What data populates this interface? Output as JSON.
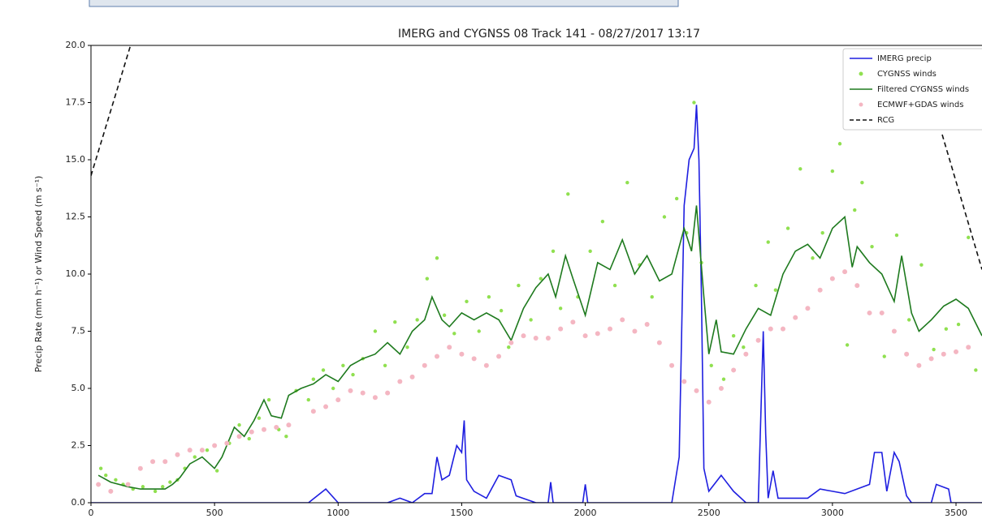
{
  "chart_data": {
    "type": "line",
    "title": "IMERG and CYGNSS 08 Track 141 - 08/27/2017 13:17",
    "y_label": "Precip Rate (mm h⁻¹) or Wind Speed (m s⁻¹)",
    "xlim": [
      0,
      3605
    ],
    "ylim": [
      0,
      20
    ],
    "xticks": [
      0,
      500,
      1000,
      1500,
      2000,
      2500,
      3000,
      3500
    ],
    "yticks": [
      {
        "value": 0,
        "label": "0.0"
      },
      2.5,
      {
        "value": 5,
        "label": "5.0"
      },
      7.5,
      {
        "value": 10,
        "label": "10.0"
      },
      12.5,
      {
        "value": 15,
        "label": "15.0"
      },
      17.5,
      {
        "value": 20,
        "label": "20.0"
      }
    ],
    "legend": "upper right",
    "series": [
      {
        "name": "IMERG precip",
        "color": "#1f1fe0",
        "style": "line",
        "x": [
          0,
          880,
          950,
          1000,
          1200,
          1250,
          1300,
          1350,
          1380,
          1400,
          1420,
          1450,
          1480,
          1500,
          1510,
          1520,
          1550,
          1600,
          1650,
          1700,
          1720,
          1800,
          1850,
          1860,
          1870,
          1990,
          2000,
          2010,
          2350,
          2380,
          2400,
          2420,
          2440,
          2450,
          2460,
          2470,
          2480,
          2500,
          2550,
          2600,
          2650,
          2700,
          2720,
          2730,
          2740,
          2760,
          2780,
          2900,
          2950,
          3000,
          3050,
          3150,
          3170,
          3200,
          3220,
          3250,
          3270,
          3300,
          3320,
          3400,
          3420,
          3470,
          3480,
          3605
        ],
        "values": [
          0,
          0,
          0.6,
          0,
          0,
          0.2,
          0,
          0.4,
          0.4,
          2,
          1,
          1.2,
          2.5,
          2.2,
          3.6,
          1,
          0.5,
          0.2,
          1.2,
          1,
          0.3,
          0,
          0,
          0.9,
          0,
          0,
          0.8,
          0,
          0,
          2,
          13,
          15,
          15.5,
          17.4,
          15,
          9,
          1.5,
          0.5,
          1.2,
          0.5,
          0,
          0,
          7.5,
          3,
          0.2,
          1.4,
          0.2,
          0.2,
          0.6,
          0.5,
          0.4,
          0.8,
          2.2,
          2.2,
          0.5,
          2.2,
          1.8,
          0.3,
          0,
          0,
          0.8,
          0.6,
          0,
          0
        ]
      },
      {
        "name": "CYGNSS winds",
        "color": "#90e050",
        "style": "points",
        "x": [
          40,
          60,
          100,
          130,
          170,
          210,
          260,
          290,
          320,
          350,
          380,
          420,
          470,
          510,
          560,
          600,
          640,
          680,
          720,
          760,
          790,
          830,
          880,
          900,
          940,
          980,
          1020,
          1060,
          1100,
          1150,
          1190,
          1230,
          1280,
          1320,
          1360,
          1400,
          1430,
          1470,
          1520,
          1570,
          1610,
          1660,
          1690,
          1730,
          1780,
          1820,
          1870,
          1900,
          1930,
          1970,
          2020,
          2070,
          2120,
          2170,
          2220,
          2270,
          2320,
          2370,
          2410,
          2440,
          2470,
          2510,
          2560,
          2600,
          2640,
          2690,
          2740,
          2770,
          2820,
          2870,
          2920,
          2960,
          3000,
          3030,
          3060,
          3090,
          3120,
          3160,
          3210,
          3260,
          3310,
          3360,
          3410,
          3460,
          3510,
          3550,
          3580
        ],
        "values": [
          1.5,
          1.2,
          1.0,
          0.8,
          0.6,
          0.7,
          0.5,
          0.7,
          0.9,
          1.0,
          1.5,
          2.0,
          2.3,
          1.4,
          2.6,
          3.4,
          2.8,
          3.7,
          4.5,
          3.2,
          2.9,
          4.9,
          4.5,
          5.4,
          5.8,
          5.0,
          6.0,
          5.6,
          6.3,
          7.5,
          6.0,
          7.9,
          6.8,
          8.0,
          9.8,
          10.7,
          8.2,
          7.4,
          8.8,
          7.5,
          9.0,
          8.4,
          6.8,
          9.5,
          8.0,
          9.8,
          11.0,
          8.5,
          13.5,
          9.0,
          11.0,
          12.3,
          9.5,
          14.0,
          10.4,
          9.0,
          12.5,
          13.3,
          11.8,
          17.5,
          10.5,
          6.0,
          5.4,
          7.3,
          6.8,
          9.5,
          11.4,
          9.3,
          12.0,
          14.6,
          10.7,
          11.8,
          14.5,
          15.7,
          6.9,
          12.8,
          14.0,
          11.2,
          6.4,
          11.7,
          8.0,
          10.4,
          6.7,
          7.6,
          7.8,
          11.6,
          5.8
        ]
      },
      {
        "name": "Filtered CYGNSS winds",
        "color": "#1e7a1e",
        "style": "line",
        "x": [
          30,
          80,
          150,
          200,
          250,
          300,
          330,
          360,
          400,
          450,
          500,
          530,
          580,
          620,
          660,
          700,
          730,
          770,
          800,
          850,
          900,
          950,
          1000,
          1050,
          1100,
          1150,
          1200,
          1250,
          1300,
          1350,
          1380,
          1420,
          1450,
          1500,
          1550,
          1600,
          1650,
          1700,
          1750,
          1800,
          1850,
          1880,
          1920,
          1950,
          2000,
          2050,
          2100,
          2150,
          2200,
          2250,
          2300,
          2350,
          2400,
          2430,
          2450,
          2480,
          2500,
          2530,
          2550,
          2600,
          2650,
          2700,
          2750,
          2800,
          2850,
          2900,
          2950,
          3000,
          3050,
          3080,
          3100,
          3150,
          3200,
          3250,
          3280,
          3320,
          3350,
          3400,
          3450,
          3500,
          3550,
          3605
        ],
        "values": [
          1.2,
          0.9,
          0.7,
          0.6,
          0.6,
          0.6,
          0.8,
          1.1,
          1.7,
          2.0,
          1.5,
          2.0,
          3.3,
          2.9,
          3.6,
          4.5,
          3.8,
          3.7,
          4.7,
          5.0,
          5.2,
          5.6,
          5.3,
          6.0,
          6.3,
          6.5,
          7.0,
          6.5,
          7.5,
          8.0,
          9.0,
          8.0,
          7.7,
          8.3,
          8.0,
          8.3,
          8.0,
          7.1,
          8.5,
          9.4,
          10.0,
          9.0,
          10.8,
          9.8,
          8.2,
          10.5,
          10.2,
          11.5,
          10.0,
          10.8,
          9.7,
          10.0,
          12.0,
          11.0,
          13.0,
          9.0,
          6.5,
          8.0,
          6.6,
          6.5,
          7.6,
          8.5,
          8.2,
          10.0,
          11.0,
          11.3,
          10.7,
          12.0,
          12.5,
          10.3,
          11.2,
          10.5,
          10.0,
          8.8,
          10.8,
          8.3,
          7.5,
          8.0,
          8.6,
          8.9,
          8.5,
          7.3
        ]
      },
      {
        "name": "ECMWF+GDAS winds",
        "color": "#f4b6c2",
        "style": "points",
        "x": [
          30,
          80,
          150,
          200,
          250,
          300,
          350,
          400,
          450,
          500,
          550,
          600,
          650,
          700,
          750,
          800,
          900,
          950,
          1000,
          1050,
          1100,
          1150,
          1200,
          1250,
          1300,
          1350,
          1400,
          1450,
          1500,
          1550,
          1600,
          1650,
          1700,
          1750,
          1800,
          1850,
          1900,
          1950,
          2000,
          2050,
          2100,
          2150,
          2200,
          2250,
          2300,
          2350,
          2400,
          2450,
          2500,
          2550,
          2600,
          2650,
          2700,
          2750,
          2800,
          2850,
          2900,
          2950,
          3000,
          3050,
          3100,
          3150,
          3200,
          3250,
          3300,
          3350,
          3400,
          3450,
          3500,
          3550
        ],
        "values": [
          0.8,
          0.5,
          0.8,
          1.5,
          1.8,
          1.8,
          2.1,
          2.3,
          2.3,
          2.5,
          2.6,
          2.9,
          3.1,
          3.2,
          3.3,
          3.4,
          4.0,
          4.2,
          4.5,
          4.9,
          4.8,
          4.6,
          4.8,
          5.3,
          5.5,
          6.0,
          6.4,
          6.8,
          6.5,
          6.3,
          6.0,
          6.4,
          7.0,
          7.3,
          7.2,
          7.2,
          7.6,
          7.9,
          7.3,
          7.4,
          7.6,
          8.0,
          7.5,
          7.8,
          7.0,
          6.0,
          5.3,
          4.9,
          4.4,
          5.0,
          5.8,
          6.5,
          7.1,
          7.6,
          7.6,
          8.1,
          8.5,
          9.3,
          9.8,
          10.1,
          9.5,
          8.3,
          8.3,
          7.5,
          6.5,
          6.0,
          6.3,
          6.5,
          6.6,
          6.8
        ]
      },
      {
        "name": "RCG",
        "color": "#111111",
        "style": "dashed",
        "x": [
          0,
          160,
          1800,
          3444,
          3605
        ],
        "values": [
          14.3,
          20,
          null,
          16.1,
          10.2
        ]
      }
    ]
  }
}
